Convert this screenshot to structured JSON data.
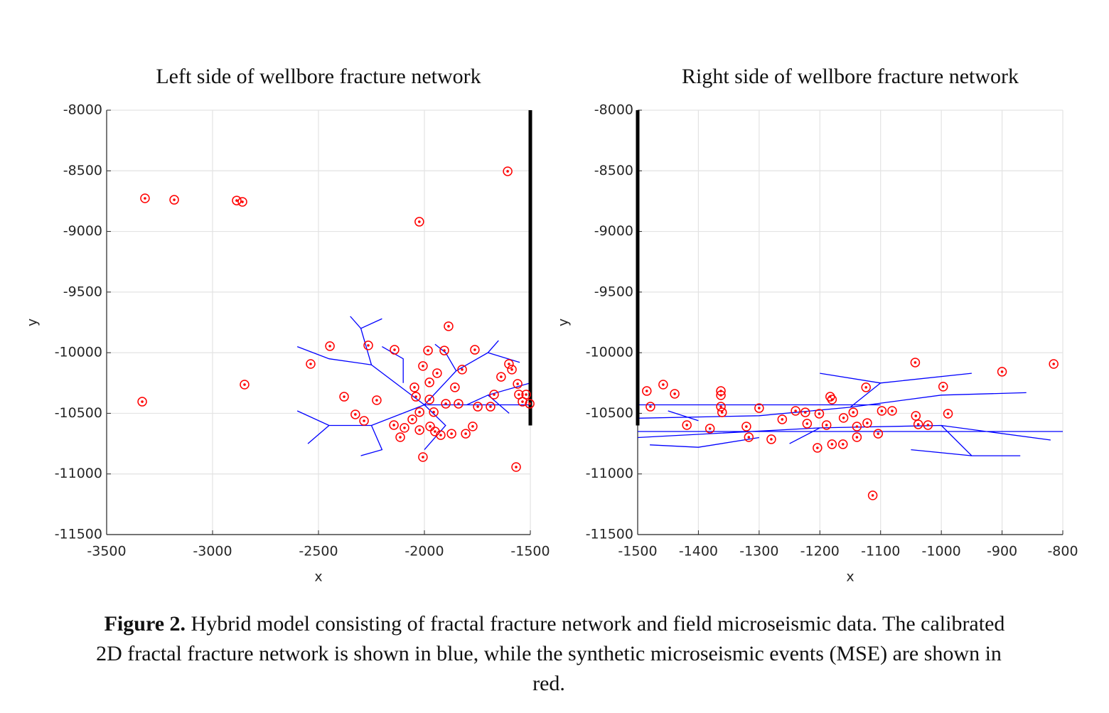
{
  "chart_data": [
    {
      "type": "scatter",
      "title": "Left side of wellbore fracture network",
      "xlabel": "x",
      "ylabel": "y",
      "xlim": [
        -3500,
        -1500
      ],
      "ylim": [
        -11500,
        -8000
      ],
      "xticks": [
        -3500,
        -3000,
        -2500,
        -2000,
        -1500
      ],
      "yticks": [
        -11500,
        -11000,
        -10500,
        -10000,
        -9500,
        -9000,
        -8500,
        -8000
      ],
      "grid": true,
      "series": [
        {
          "mode": "lines",
          "color": "#0000ff",
          "linewidth": 1.3,
          "x": [
            -1500,
            -2000,
            null,
            -2000,
            -2250,
            -2450,
            -2600,
            null,
            -2250,
            -2300,
            -2350,
            null,
            -2300,
            -2200,
            null,
            -2000,
            -2250,
            -2450,
            -2600,
            null,
            -2450,
            -2550,
            null,
            -2250,
            -2200,
            -2300,
            null,
            -2000,
            -1850,
            -1700,
            -1650,
            null,
            -1850,
            -1900,
            -1950,
            null,
            -1700,
            -1550,
            null,
            -2000,
            -1900,
            -2000,
            null,
            -1800,
            -1700,
            -1500,
            null,
            -1700,
            -1600,
            null,
            -2100,
            -2100,
            -2200
          ],
          "y": [
            -10430,
            -10430,
            null,
            -10430,
            -10100,
            -10050,
            -9950,
            null,
            -10100,
            -9800,
            -9700,
            null,
            -9800,
            -9720,
            null,
            -10430,
            -10600,
            -10600,
            -10480,
            null,
            -10600,
            -10750,
            null,
            -10600,
            -10800,
            -10850,
            null,
            -10430,
            -10150,
            -10000,
            -9900,
            null,
            -10150,
            -10000,
            -9930,
            null,
            -10000,
            -10080,
            null,
            -10430,
            -10600,
            -10800,
            null,
            -10430,
            -10350,
            -10250,
            null,
            -10350,
            -10500,
            null,
            -10250,
            -10050,
            -9950
          ]
        },
        {
          "mode": "lines",
          "color": "#000000",
          "linewidth": 5,
          "x": [
            -1500,
            -1500
          ],
          "y": [
            -8000,
            -10600
          ]
        },
        {
          "mode": "markers",
          "color": "#ff0000",
          "x": [
            -3319,
            -3181,
            -2886,
            -2859,
            -1607,
            -2024,
            -3332,
            -2849,
            -1886,
            -1567,
            -2007,
            -2537,
            -2446,
            -2265,
            -2379,
            -2326,
            -2285,
            -2225,
            -2144,
            -2094,
            -2114,
            -2141,
            -2047,
            -2040,
            -2023,
            -2007,
            -1983,
            -1976,
            -1976,
            -1956,
            -1973,
            -1950,
            -1923,
            -1940,
            -1906,
            -1899,
            -1856,
            -1872,
            -1839,
            -1822,
            -1805,
            -1772,
            -1762,
            -1748,
            -1688,
            -1671,
            -1638,
            -1601,
            -1587,
            -1560,
            -1554,
            -1537,
            -1520,
            -1503,
            -2023,
            -2057
          ],
          "y": [
            -8727,
            -8739,
            -8745,
            -8756,
            -8504,
            -8920,
            -10404,
            -10263,
            -9782,
            -10943,
            -10861,
            -10093,
            -9946,
            -9940,
            -10363,
            -10509,
            -10562,
            -10392,
            -10597,
            -10620,
            -10697,
            -9976,
            -10286,
            -10363,
            -10490,
            -10110,
            -9982,
            -10245,
            -10386,
            -10490,
            -10608,
            -10650,
            -10680,
            -10169,
            -9982,
            -10421,
            -10286,
            -10668,
            -10421,
            -10139,
            -10668,
            -10608,
            -9976,
            -10445,
            -10445,
            -10345,
            -10199,
            -10093,
            -10139,
            -10257,
            -10345,
            -10404,
            -10345,
            -10421,
            -10638,
            -10550
          ]
        }
      ]
    },
    {
      "type": "scatter",
      "title": "Right side of wellbore fracture network",
      "xlabel": "x",
      "ylabel": "y",
      "xlim": [
        -1500,
        -800
      ],
      "ylim": [
        -11500,
        -8000
      ],
      "xticks": [
        -1500,
        -1400,
        -1300,
        -1200,
        -1100,
        -1000,
        -900,
        -800
      ],
      "yticks": [
        -11500,
        -11000,
        -10500,
        -10000,
        -9500,
        -9000,
        -8500,
        -8000
      ],
      "grid": true,
      "series": [
        {
          "mode": "lines",
          "color": "#0000ff",
          "linewidth": 1.3,
          "x": [
            -1500,
            -1100,
            null,
            -1500,
            -800,
            null,
            -1500,
            -1200,
            -1000,
            -820,
            null,
            -1500,
            -1300,
            -1150,
            -1000,
            -860,
            null,
            -1150,
            -1100,
            -950,
            null,
            -1100,
            -1200,
            null,
            -1000,
            -950,
            -870,
            null,
            -950,
            -1050,
            null,
            -1300,
            -1400,
            -1480,
            null,
            -1400,
            -1450,
            null,
            -1200,
            -1250
          ],
          "y": [
            -10430,
            -10430,
            null,
            -10650,
            -10650,
            null,
            -10700,
            -10620,
            -10600,
            -10720,
            null,
            -10540,
            -10520,
            -10450,
            -10350,
            -10330,
            null,
            -10450,
            -10250,
            -10170,
            null,
            -10250,
            -10170,
            null,
            -10600,
            -10850,
            -10850,
            null,
            -10850,
            -10800,
            null,
            -10700,
            -10780,
            -10760,
            null,
            -10560,
            -10480,
            null,
            -10620,
            -10750
          ]
        },
        {
          "mode": "lines",
          "color": "#000000",
          "linewidth": 5,
          "x": [
            -1500,
            -1500
          ],
          "y": [
            -8000,
            -10600
          ]
        },
        {
          "mode": "markers",
          "color": "#ff0000",
          "x": [
            -1485,
            -1479,
            -1458,
            -1439,
            -1419,
            -1381,
            -1363,
            -1363,
            -1363,
            -1361,
            -1321,
            -1317,
            -1300,
            -1280,
            -1262,
            -1240,
            -1224,
            -1221,
            -1204,
            -1201,
            -1189,
            -1183,
            -1180,
            -1180,
            -1161,
            -1162,
            -1145,
            -1139,
            -1139,
            -1124,
            -1122,
            -1113,
            -1104,
            -1098,
            -1081,
            -1043,
            -1042,
            -1038,
            -1022,
            -997,
            -989,
            -900,
            -815
          ],
          "y": [
            -10316,
            -10445,
            -10263,
            -10339,
            -10597,
            -10626,
            -10316,
            -10351,
            -10445,
            -10492,
            -10609,
            -10697,
            -10457,
            -10714,
            -10550,
            -10480,
            -10492,
            -10585,
            -10785,
            -10503,
            -10597,
            -10363,
            -10386,
            -10755,
            -10538,
            -10755,
            -10492,
            -10609,
            -10697,
            -10286,
            -10580,
            -11177,
            -10668,
            -10480,
            -10480,
            -10081,
            -10521,
            -10591,
            -10597,
            -10280,
            -10503,
            -10157,
            -10093
          ]
        }
      ]
    }
  ],
  "caption": {
    "label": "Figure 2.",
    "lines": [
      "Hybrid model consisting of fractal fracture network and field microseismic data. The calibrated",
      "2D fractal fracture network is shown in blue, while the synthetic microseismic events (MSE) are shown in",
      "red."
    ]
  }
}
